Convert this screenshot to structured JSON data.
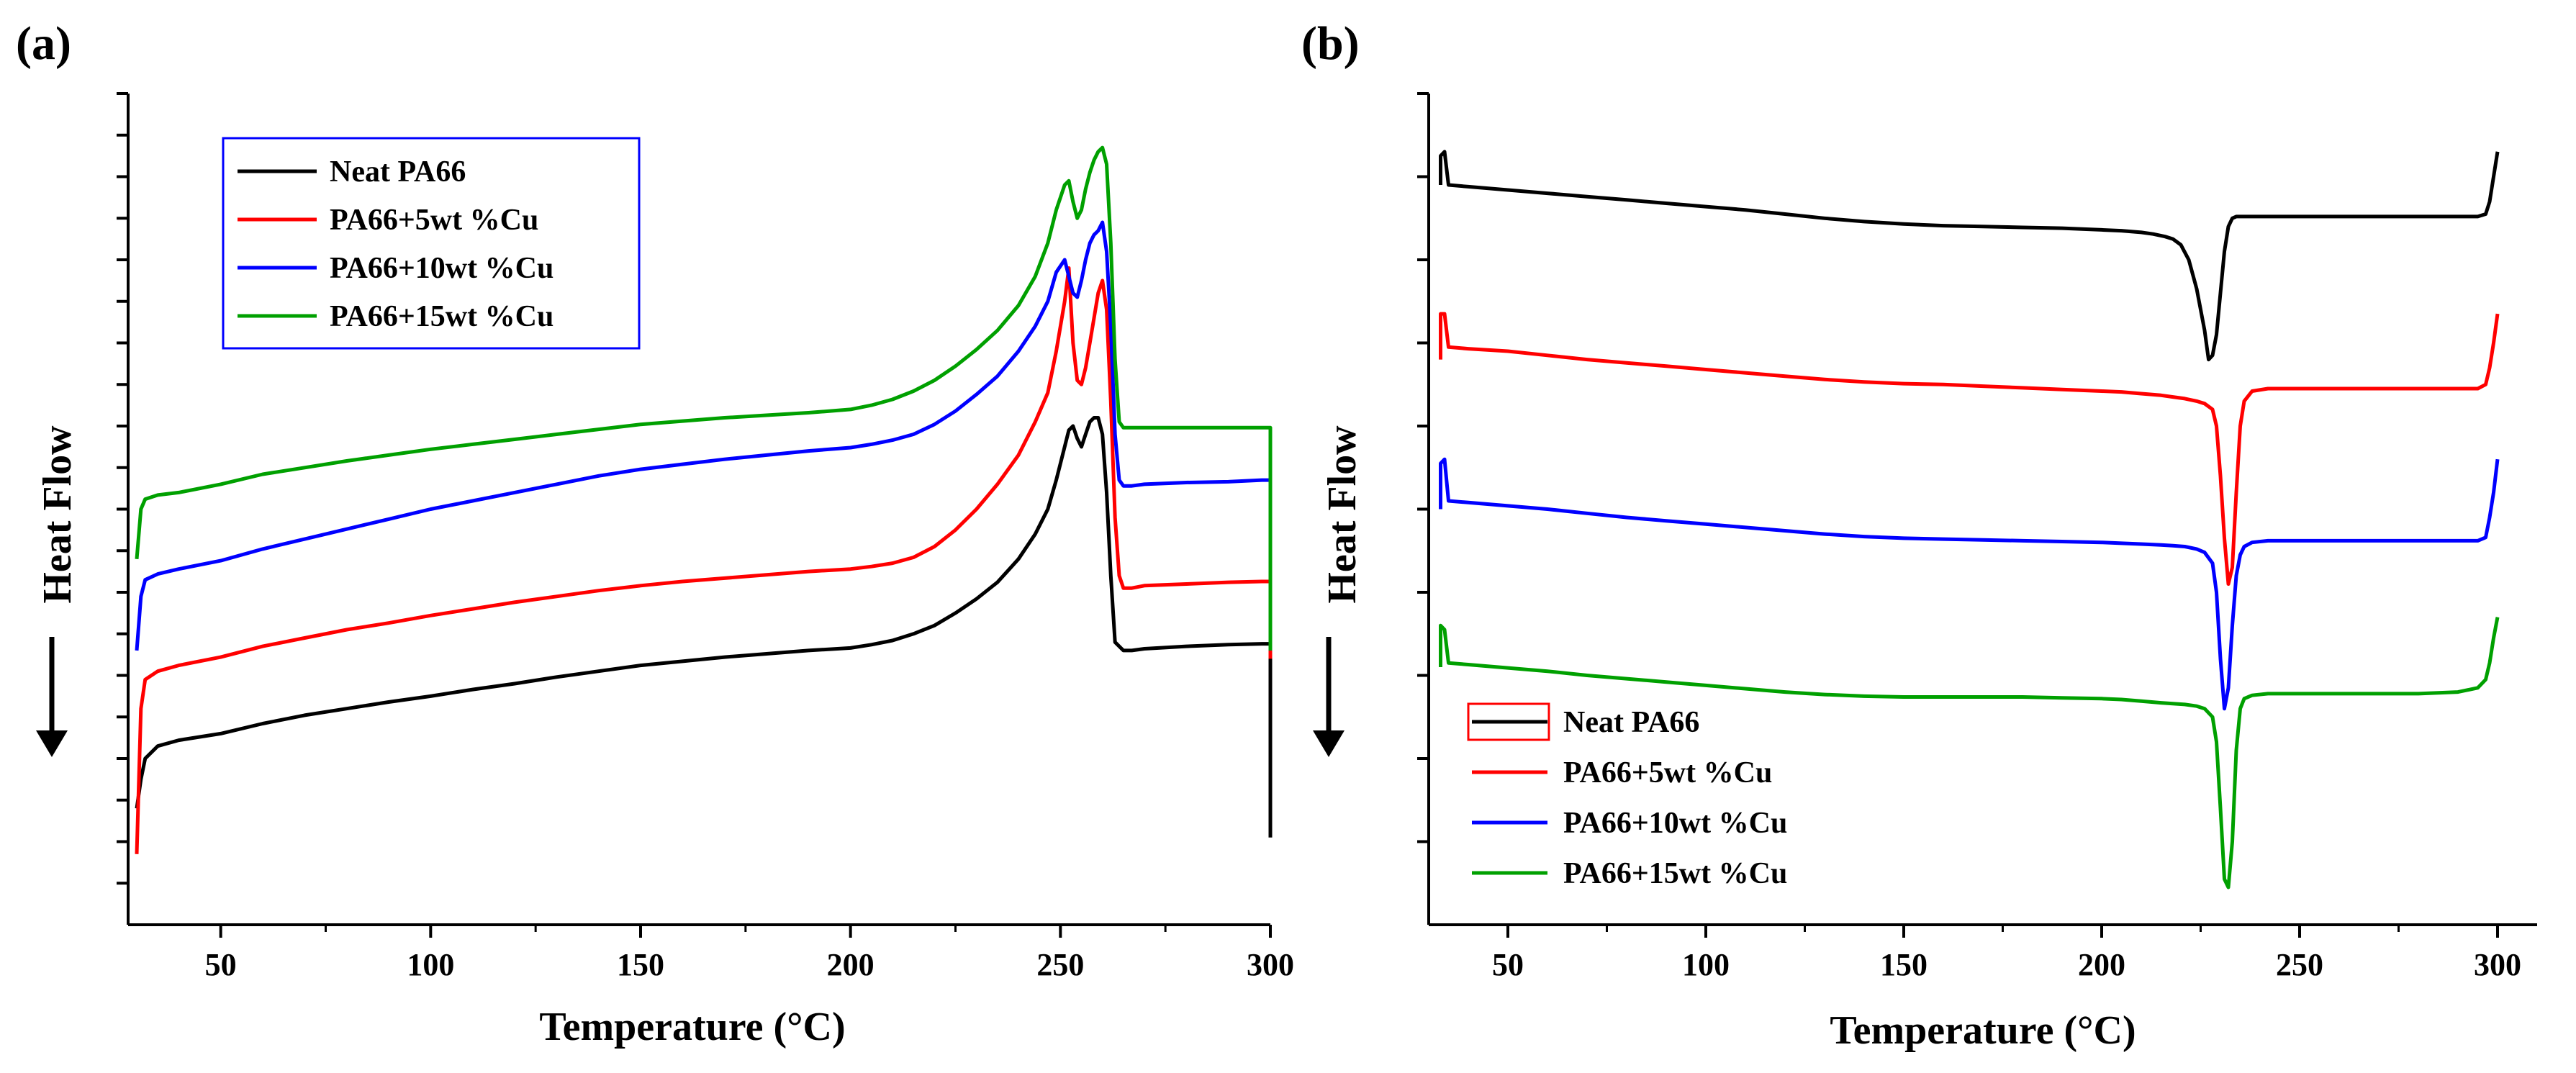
{
  "chart_data": [
    {
      "panel_label": "(a)",
      "type": "line",
      "xlabel": "Temperature (°C)",
      "ylabel": "Heat Flow",
      "xlim": [
        30,
        300
      ],
      "ylim": [
        0,
        10
      ],
      "xticks": [
        "50",
        "100",
        "150",
        "200",
        "250",
        "300"
      ],
      "legend_position": "top-left",
      "series": [
        {
          "name": "Neat PA66",
          "color": "#000000",
          "x": [
            30,
            31,
            32,
            35,
            40,
            50,
            60,
            70,
            80,
            90,
            100,
            110,
            120,
            130,
            140,
            150,
            160,
            170,
            180,
            190,
            200,
            205,
            210,
            215,
            220,
            225,
            230,
            235,
            240,
            244,
            247,
            249,
            251,
            252,
            253,
            254,
            255,
            256,
            257,
            258,
            259,
            260,
            261,
            262,
            263,
            264,
            265,
            267,
            270,
            280,
            290,
            298,
            299,
            300,
            300
          ],
          "y": [
            1.4,
            1.75,
            2.0,
            2.15,
            2.22,
            2.3,
            2.42,
            2.52,
            2.6,
            2.68,
            2.75,
            2.83,
            2.9,
            2.98,
            3.05,
            3.12,
            3.17,
            3.22,
            3.26,
            3.3,
            3.33,
            3.37,
            3.42,
            3.5,
            3.6,
            3.75,
            3.92,
            4.12,
            4.4,
            4.7,
            5.0,
            5.35,
            5.75,
            5.95,
            6.0,
            5.85,
            5.75,
            5.9,
            6.05,
            6.1,
            6.1,
            5.9,
            5.2,
            4.2,
            3.4,
            3.35,
            3.3,
            3.3,
            3.32,
            3.35,
            3.37,
            3.38,
            3.38,
            3.38,
            1.05
          ]
        },
        {
          "name": "PA66+5wt %Cu",
          "color": "#ff0000",
          "x": [
            30,
            31,
            32,
            35,
            40,
            50,
            60,
            70,
            80,
            90,
            100,
            110,
            120,
            130,
            140,
            150,
            160,
            170,
            180,
            190,
            200,
            205,
            210,
            215,
            220,
            225,
            230,
            235,
            240,
            244,
            247,
            249,
            251,
            252,
            253,
            254,
            255,
            256,
            257,
            258,
            259,
            260,
            261,
            262,
            263,
            264,
            265,
            267,
            270,
            280,
            290,
            298,
            299,
            300,
            300
          ],
          "y": [
            0.85,
            2.6,
            2.95,
            3.05,
            3.12,
            3.22,
            3.35,
            3.45,
            3.55,
            3.63,
            3.72,
            3.8,
            3.88,
            3.95,
            4.02,
            4.08,
            4.13,
            4.17,
            4.21,
            4.25,
            4.28,
            4.31,
            4.35,
            4.42,
            4.55,
            4.75,
            5.0,
            5.3,
            5.65,
            6.05,
            6.4,
            6.9,
            7.5,
            7.9,
            7.0,
            6.55,
            6.5,
            6.7,
            7.0,
            7.3,
            7.6,
            7.75,
            7.4,
            6.3,
            4.9,
            4.2,
            4.05,
            4.05,
            4.08,
            4.1,
            4.12,
            4.13,
            4.13,
            4.13,
            3.2
          ]
        },
        {
          "name": "PA66+10wt %Cu",
          "color": "#0000ff",
          "x": [
            30,
            31,
            32,
            35,
            40,
            50,
            60,
            70,
            80,
            90,
            100,
            110,
            120,
            130,
            140,
            150,
            160,
            170,
            180,
            190,
            200,
            205,
            210,
            215,
            220,
            225,
            230,
            235,
            240,
            244,
            247,
            249,
            251,
            252,
            253,
            254,
            255,
            256,
            257,
            258,
            259,
            260,
            261,
            262,
            263,
            264,
            265,
            267,
            270,
            280,
            290,
            298,
            299,
            300,
            300
          ],
          "y": [
            3.3,
            3.95,
            4.15,
            4.22,
            4.28,
            4.38,
            4.52,
            4.64,
            4.76,
            4.88,
            5.0,
            5.1,
            5.2,
            5.3,
            5.4,
            5.48,
            5.54,
            5.6,
            5.65,
            5.7,
            5.74,
            5.78,
            5.83,
            5.9,
            6.02,
            6.18,
            6.38,
            6.6,
            6.9,
            7.2,
            7.5,
            7.85,
            8.0,
            7.8,
            7.6,
            7.55,
            7.75,
            8.0,
            8.2,
            8.3,
            8.35,
            8.45,
            8.1,
            7.2,
            5.9,
            5.35,
            5.28,
            5.28,
            5.3,
            5.32,
            5.33,
            5.35,
            5.35,
            5.35,
            3.3
          ]
        },
        {
          "name": "PA66+15wt %Cu",
          "color": "#00a000",
          "x": [
            30,
            31,
            32,
            35,
            40,
            50,
            60,
            70,
            80,
            90,
            100,
            110,
            120,
            130,
            140,
            150,
            160,
            170,
            180,
            190,
            200,
            205,
            210,
            215,
            220,
            225,
            230,
            235,
            240,
            244,
            247,
            249,
            251,
            252,
            253,
            254,
            255,
            256,
            257,
            258,
            259,
            260,
            261,
            262,
            263,
            264,
            265,
            267,
            270,
            280,
            290,
            298,
            299,
            300,
            300
          ],
          "y": [
            4.4,
            5.0,
            5.12,
            5.17,
            5.2,
            5.3,
            5.42,
            5.5,
            5.58,
            5.65,
            5.72,
            5.78,
            5.84,
            5.9,
            5.96,
            6.02,
            6.06,
            6.1,
            6.13,
            6.16,
            6.2,
            6.25,
            6.32,
            6.42,
            6.55,
            6.72,
            6.92,
            7.15,
            7.45,
            7.8,
            8.2,
            8.6,
            8.9,
            8.95,
            8.7,
            8.5,
            8.6,
            8.85,
            9.05,
            9.2,
            9.3,
            9.35,
            9.15,
            8.2,
            6.8,
            6.05,
            5.98,
            5.98,
            5.98,
            5.98,
            5.98,
            5.98,
            5.98,
            5.98,
            3.3
          ]
        }
      ]
    },
    {
      "panel_label": "(b)",
      "type": "line",
      "xlabel": "Temperature (°C)",
      "ylabel": "Heat Flow",
      "xlim": [
        30,
        310
      ],
      "ylim": [
        0,
        10
      ],
      "xticks": [
        "50",
        "100",
        "150",
        "200",
        "250",
        "300"
      ],
      "legend_position": "bottom-left",
      "series": [
        {
          "name": "Neat PA66",
          "color": "#000000",
          "x": [
            33,
            33,
            34,
            35,
            40,
            50,
            60,
            70,
            80,
            90,
            100,
            110,
            120,
            130,
            140,
            150,
            160,
            170,
            180,
            190,
            200,
            205,
            210,
            213,
            216,
            218,
            220,
            222,
            224,
            226,
            227,
            228,
            229,
            230,
            231,
            232,
            233,
            234,
            236,
            240,
            250,
            260,
            270,
            280,
            290,
            295,
            297,
            298,
            299,
            300
          ],
          "y": [
            8.9,
            9.25,
            9.3,
            8.9,
            8.88,
            8.84,
            8.8,
            8.76,
            8.72,
            8.68,
            8.64,
            8.6,
            8.55,
            8.5,
            8.46,
            8.43,
            8.41,
            8.4,
            8.39,
            8.38,
            8.36,
            8.35,
            8.33,
            8.31,
            8.28,
            8.25,
            8.18,
            8.0,
            7.65,
            7.15,
            6.8,
            6.85,
            7.1,
            7.6,
            8.1,
            8.4,
            8.5,
            8.52,
            8.52,
            8.52,
            8.52,
            8.52,
            8.52,
            8.52,
            8.52,
            8.52,
            8.55,
            8.7,
            9.0,
            9.3
          ]
        },
        {
          "name": "PA66+5wt %Cu",
          "color": "#ff0000",
          "x": [
            33,
            33,
            34,
            35,
            40,
            50,
            60,
            70,
            80,
            90,
            100,
            110,
            120,
            130,
            140,
            150,
            160,
            170,
            180,
            190,
            200,
            205,
            210,
            215,
            218,
            221,
            224,
            226,
            228,
            229,
            230,
            231,
            232,
            233,
            234,
            235,
            236,
            238,
            242,
            250,
            260,
            270,
            280,
            290,
            295,
            297,
            298,
            299,
            300
          ],
          "y": [
            6.8,
            7.35,
            7.35,
            6.95,
            6.93,
            6.9,
            6.85,
            6.8,
            6.76,
            6.72,
            6.68,
            6.64,
            6.6,
            6.56,
            6.53,
            6.51,
            6.5,
            6.48,
            6.46,
            6.44,
            6.42,
            6.41,
            6.39,
            6.37,
            6.35,
            6.33,
            6.3,
            6.27,
            6.2,
            6.0,
            5.4,
            4.65,
            4.1,
            4.3,
            5.2,
            6.0,
            6.3,
            6.42,
            6.45,
            6.45,
            6.45,
            6.45,
            6.45,
            6.45,
            6.45,
            6.5,
            6.7,
            7.0,
            7.35
          ]
        },
        {
          "name": "PA66+10wt %Cu",
          "color": "#0000ff",
          "x": [
            33,
            33,
            34,
            35,
            40,
            50,
            60,
            70,
            80,
            90,
            100,
            110,
            120,
            130,
            140,
            150,
            160,
            170,
            180,
            190,
            200,
            205,
            210,
            215,
            218,
            221,
            224,
            226,
            228,
            229,
            230,
            231,
            232,
            233,
            234,
            235,
            236,
            238,
            242,
            250,
            260,
            270,
            280,
            290,
            295,
            297,
            298,
            299,
            300
          ],
          "y": [
            5.0,
            5.55,
            5.6,
            5.1,
            5.08,
            5.04,
            5.0,
            4.95,
            4.9,
            4.86,
            4.82,
            4.78,
            4.74,
            4.7,
            4.67,
            4.65,
            4.64,
            4.63,
            4.62,
            4.61,
            4.6,
            4.59,
            4.58,
            4.57,
            4.56,
            4.55,
            4.52,
            4.48,
            4.35,
            4.0,
            3.2,
            2.6,
            2.85,
            3.6,
            4.2,
            4.45,
            4.55,
            4.6,
            4.62,
            4.62,
            4.62,
            4.62,
            4.62,
            4.62,
            4.62,
            4.66,
            4.9,
            5.2,
            5.6
          ]
        },
        {
          "name": "PA66+15wt %Cu",
          "color": "#00a000",
          "x": [
            33,
            33,
            34,
            35,
            40,
            50,
            60,
            70,
            80,
            90,
            100,
            110,
            120,
            130,
            140,
            150,
            160,
            170,
            180,
            190,
            200,
            205,
            210,
            215,
            218,
            221,
            224,
            226,
            228,
            229,
            230,
            231,
            232,
            233,
            234,
            235,
            236,
            238,
            242,
            250,
            260,
            270,
            280,
            290,
            295,
            297,
            298,
            299,
            300
          ],
          "y": [
            3.1,
            3.6,
            3.55,
            3.15,
            3.13,
            3.09,
            3.05,
            3.0,
            2.96,
            2.92,
            2.88,
            2.84,
            2.8,
            2.77,
            2.75,
            2.74,
            2.74,
            2.74,
            2.74,
            2.73,
            2.72,
            2.71,
            2.69,
            2.67,
            2.66,
            2.65,
            2.63,
            2.6,
            2.5,
            2.2,
            1.4,
            0.55,
            0.45,
            1.0,
            2.1,
            2.6,
            2.72,
            2.76,
            2.78,
            2.78,
            2.78,
            2.78,
            2.78,
            2.8,
            2.85,
            2.95,
            3.15,
            3.45,
            3.7
          ]
        }
      ]
    }
  ]
}
